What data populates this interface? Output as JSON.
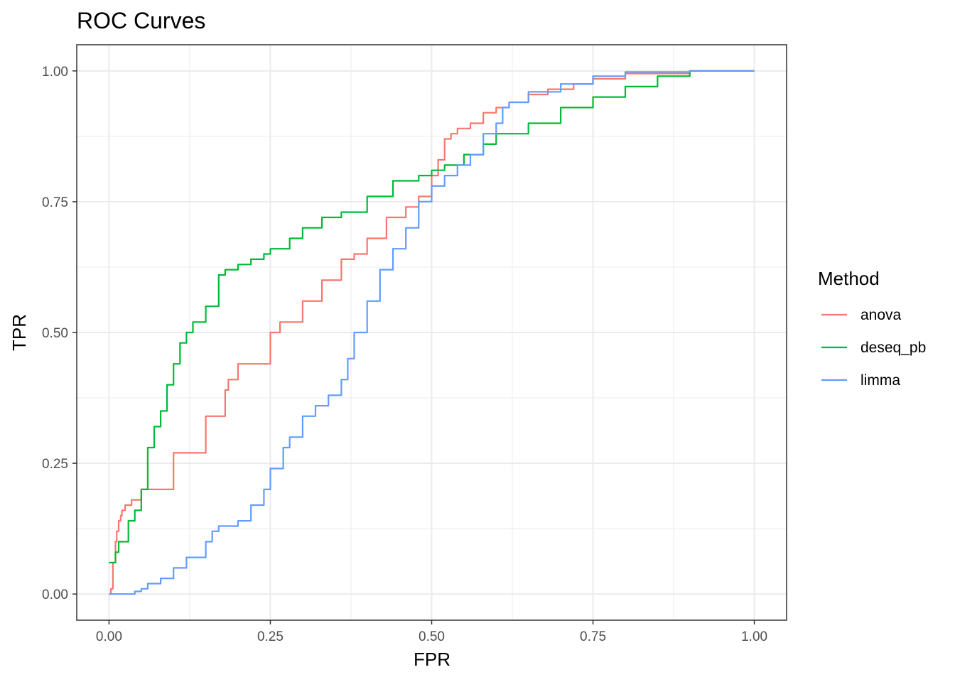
{
  "chart_data": {
    "type": "line",
    "title": "ROC Curves",
    "xlabel": "FPR",
    "ylabel": "TPR",
    "xlim": [
      -0.05,
      1.05
    ],
    "ylim": [
      -0.05,
      1.05
    ],
    "x_ticks": [
      0,
      0.25,
      0.5,
      0.75,
      1
    ],
    "x_tick_labels": [
      "0.00",
      "0.25",
      "0.50",
      "0.75",
      "1.00"
    ],
    "y_ticks": [
      0,
      0.25,
      0.5,
      0.75,
      1
    ],
    "y_tick_labels": [
      "0.00",
      "0.25",
      "0.50",
      "0.75",
      "1.00"
    ],
    "grid": true,
    "legend": {
      "title": "Method",
      "position": "right"
    },
    "series": [
      {
        "name": "anova",
        "color": "#F8766D",
        "x": [
          0,
          0.003,
          0.006,
          0.008,
          0.01,
          0.012,
          0.015,
          0.018,
          0.02,
          0.025,
          0.035,
          0.05,
          0.1,
          0.15,
          0.18,
          0.185,
          0.2,
          0.25,
          0.265,
          0.3,
          0.33,
          0.36,
          0.38,
          0.4,
          0.43,
          0.44,
          0.46,
          0.48,
          0.5,
          0.51,
          0.52,
          0.53,
          0.54,
          0.56,
          0.58,
          0.6,
          0.62,
          0.65,
          0.68,
          0.72,
          0.75,
          0.8,
          0.9,
          1.0
        ],
        "y": [
          0,
          0.01,
          0.06,
          0.06,
          0.1,
          0.12,
          0.14,
          0.15,
          0.16,
          0.17,
          0.18,
          0.2,
          0.27,
          0.34,
          0.39,
          0.41,
          0.44,
          0.5,
          0.52,
          0.56,
          0.6,
          0.64,
          0.65,
          0.68,
          0.72,
          0.72,
          0.74,
          0.76,
          0.8,
          0.83,
          0.87,
          0.88,
          0.89,
          0.9,
          0.92,
          0.93,
          0.94,
          0.955,
          0.965,
          0.975,
          0.985,
          0.995,
          1.0,
          1.0
        ]
      },
      {
        "name": "deseq_pb",
        "color": "#00BA38",
        "x": [
          0,
          0.005,
          0.01,
          0.015,
          0.02,
          0.03,
          0.04,
          0.05,
          0.06,
          0.07,
          0.08,
          0.09,
          0.1,
          0.11,
          0.12,
          0.13,
          0.15,
          0.16,
          0.17,
          0.18,
          0.2,
          0.22,
          0.24,
          0.25,
          0.28,
          0.3,
          0.33,
          0.36,
          0.4,
          0.44,
          0.48,
          0.5,
          0.52,
          0.55,
          0.58,
          0.6,
          0.65,
          0.7,
          0.75,
          0.8,
          0.85,
          0.9,
          1.0
        ],
        "y": [
          0.06,
          0.06,
          0.08,
          0.1,
          0.1,
          0.14,
          0.16,
          0.2,
          0.28,
          0.32,
          0.35,
          0.4,
          0.44,
          0.48,
          0.5,
          0.52,
          0.55,
          0.55,
          0.61,
          0.62,
          0.63,
          0.64,
          0.65,
          0.66,
          0.68,
          0.7,
          0.72,
          0.73,
          0.76,
          0.79,
          0.8,
          0.81,
          0.82,
          0.84,
          0.86,
          0.88,
          0.9,
          0.93,
          0.95,
          0.97,
          0.99,
          1.0,
          1.0
        ]
      },
      {
        "name": "limma",
        "color": "#619CFF",
        "x": [
          0,
          0.02,
          0.04,
          0.05,
          0.06,
          0.08,
          0.1,
          0.12,
          0.15,
          0.16,
          0.17,
          0.18,
          0.2,
          0.22,
          0.24,
          0.25,
          0.27,
          0.28,
          0.3,
          0.32,
          0.34,
          0.36,
          0.37,
          0.38,
          0.4,
          0.42,
          0.44,
          0.46,
          0.48,
          0.5,
          0.52,
          0.54,
          0.56,
          0.58,
          0.6,
          0.61,
          0.62,
          0.65,
          0.7,
          0.75,
          0.8,
          0.9,
          1.0
        ],
        "y": [
          0,
          0,
          0.005,
          0.01,
          0.02,
          0.03,
          0.05,
          0.07,
          0.1,
          0.12,
          0.13,
          0.13,
          0.14,
          0.17,
          0.2,
          0.24,
          0.28,
          0.3,
          0.34,
          0.36,
          0.38,
          0.41,
          0.45,
          0.5,
          0.56,
          0.62,
          0.66,
          0.7,
          0.75,
          0.78,
          0.8,
          0.82,
          0.84,
          0.88,
          0.9,
          0.93,
          0.94,
          0.96,
          0.975,
          0.99,
          0.998,
          1.0,
          1.0
        ]
      }
    ]
  }
}
